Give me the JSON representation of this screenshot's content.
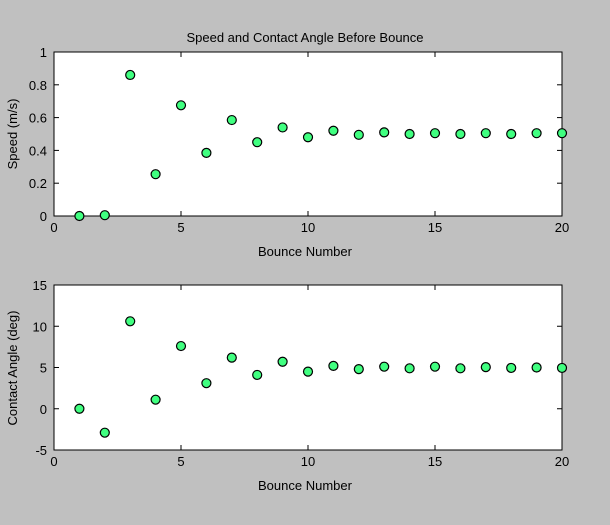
{
  "colors": {
    "figure_background": "#c0c0c0",
    "axes_background": "#ffffff",
    "marker_fill": "#40ff80",
    "marker_edge": "#000000"
  },
  "chart_data": [
    {
      "type": "scatter",
      "title": "Speed and Contact Angle Before Bounce",
      "xlabel": "Bounce Number",
      "ylabel": "Speed (m/s)",
      "xlim": [
        0,
        20
      ],
      "ylim": [
        0,
        1
      ],
      "xticks": [
        0,
        5,
        10,
        15,
        20
      ],
      "yticks": [
        0,
        0.2,
        0.4,
        0.6,
        0.8,
        1
      ],
      "xtick_labels": [
        "0",
        "5",
        "10",
        "15",
        "20"
      ],
      "ytick_labels": [
        "0",
        "0.2",
        "0.4",
        "0.6",
        "0.8",
        "1"
      ],
      "grid": false,
      "marker": "circle",
      "x": [
        1,
        2,
        3,
        4,
        5,
        6,
        7,
        8,
        9,
        10,
        11,
        12,
        13,
        14,
        15,
        16,
        17,
        18,
        19,
        20
      ],
      "y": [
        0.0,
        0.005,
        0.86,
        0.255,
        0.675,
        0.385,
        0.585,
        0.45,
        0.54,
        0.48,
        0.52,
        0.495,
        0.51,
        0.5,
        0.505,
        0.5,
        0.505,
        0.5,
        0.505,
        0.505
      ]
    },
    {
      "type": "scatter",
      "title": "",
      "xlabel": "Bounce Number",
      "ylabel": "Contact Angle (deg)",
      "xlim": [
        0,
        20
      ],
      "ylim": [
        -5,
        15
      ],
      "xticks": [
        0,
        5,
        10,
        15,
        20
      ],
      "yticks": [
        -5,
        0,
        5,
        10,
        15
      ],
      "xtick_labels": [
        "0",
        "5",
        "10",
        "15",
        "20"
      ],
      "ytick_labels": [
        "-5",
        "0",
        "5",
        "10",
        "15"
      ],
      "grid": false,
      "marker": "circle",
      "x": [
        1,
        2,
        3,
        4,
        5,
        6,
        7,
        8,
        9,
        10,
        11,
        12,
        13,
        14,
        15,
        16,
        17,
        18,
        19,
        20
      ],
      "y": [
        0.0,
        -2.9,
        10.6,
        1.1,
        7.6,
        3.1,
        6.2,
        4.1,
        5.7,
        4.5,
        5.2,
        4.8,
        5.1,
        4.9,
        5.1,
        4.9,
        5.05,
        4.95,
        5.0,
        4.95
      ]
    }
  ]
}
